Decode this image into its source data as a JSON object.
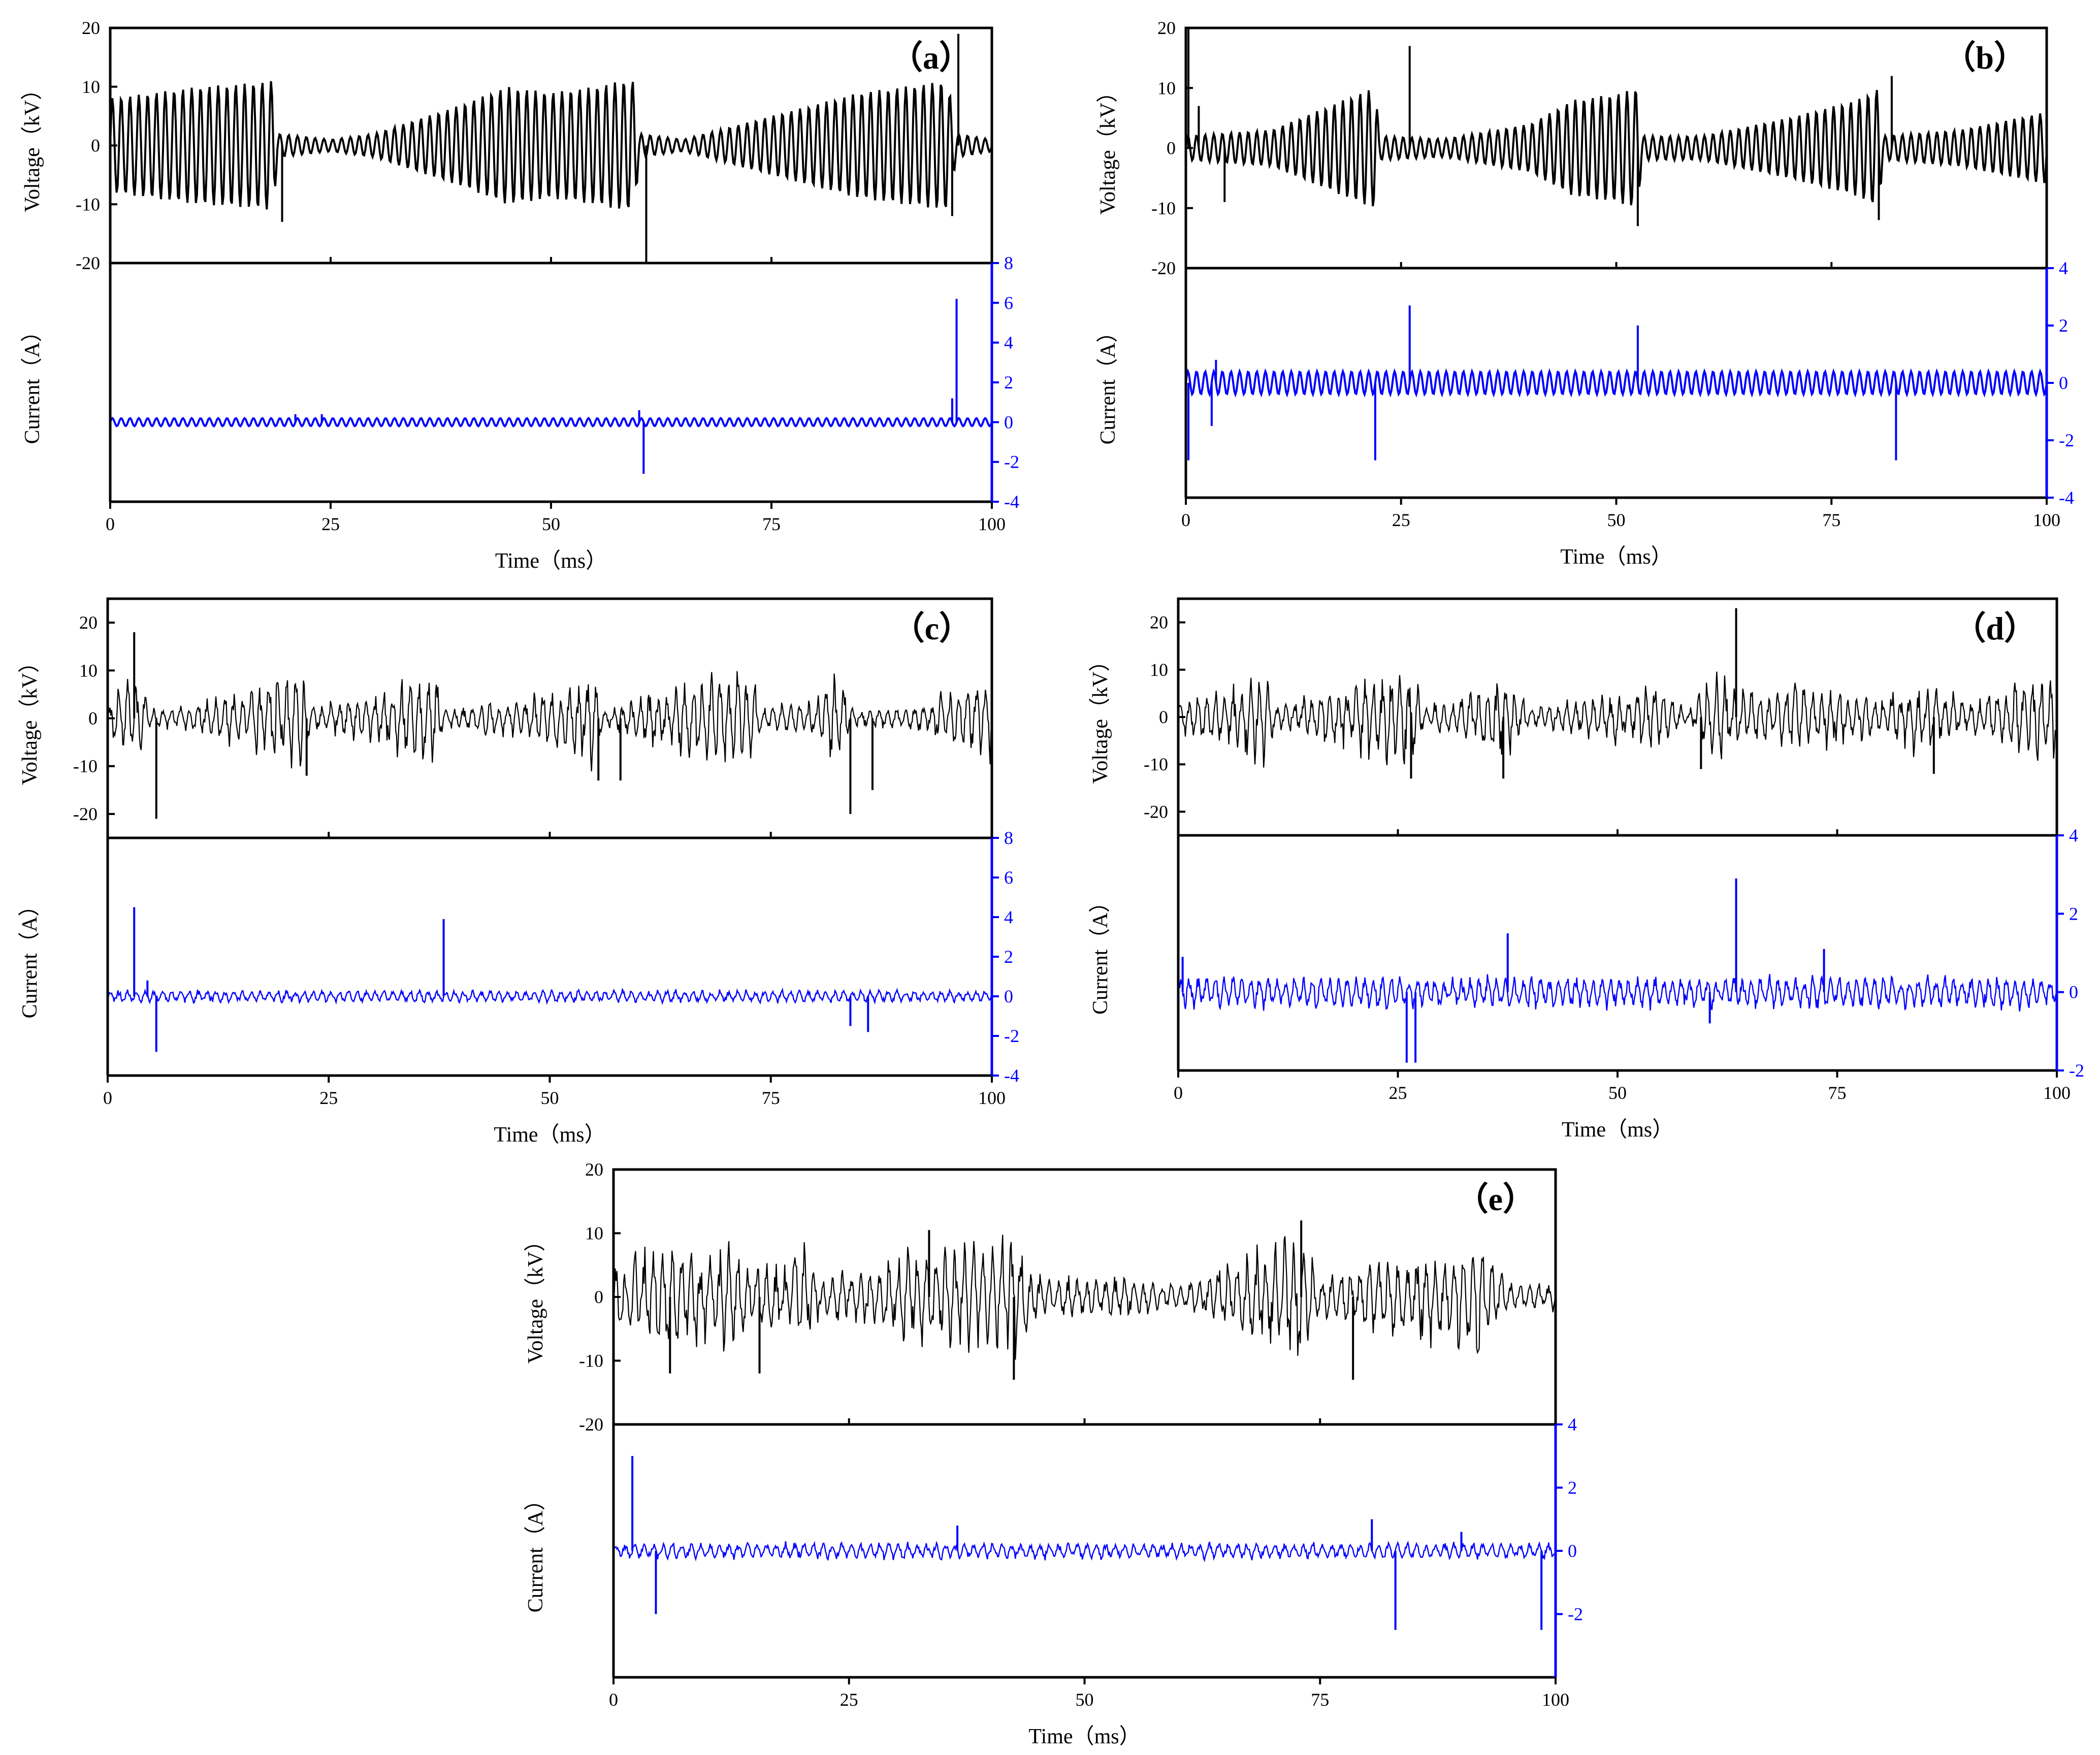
{
  "chart_data": [
    {
      "panel": "（a）",
      "type": "line",
      "xlabel": "Time（ms）",
      "x_ticks": [
        0,
        25,
        50,
        75,
        100
      ],
      "xlim": [
        0,
        100
      ],
      "voltage": {
        "ylabel": "Voltage（kV）",
        "ylim": [
          -20,
          20
        ],
        "yticks": [
          -20,
          -10,
          0,
          10,
          20
        ],
        "color": "#000000",
        "envelope": [
          [
            0,
            8
          ],
          [
            5,
            9
          ],
          [
            10,
            10
          ],
          [
            15,
            10.5
          ],
          [
            18.5,
            11
          ],
          [
            19,
            2
          ],
          [
            25,
            1
          ],
          [
            30,
            2
          ],
          [
            40,
            7
          ],
          [
            45,
            10
          ],
          [
            50,
            9
          ],
          [
            55,
            10
          ],
          [
            58,
            11
          ],
          [
            59.5,
            11
          ],
          [
            60,
            2
          ],
          [
            65,
            1
          ],
          [
            75,
            5
          ],
          [
            85,
            9
          ],
          [
            90,
            10
          ],
          [
            95,
            11
          ],
          [
            96,
            2
          ],
          [
            100,
            1
          ]
        ],
        "spikes": [
          [
            60.8,
            -20
          ],
          [
            96.2,
            19
          ],
          [
            19.5,
            -13
          ],
          [
            95.5,
            -12
          ]
        ]
      },
      "current": {
        "ylabel": "Current（A）",
        "ylim": [
          -4,
          8
        ],
        "yticks": [
          -4,
          -2,
          0,
          2,
          4,
          6,
          8
        ],
        "color": "#0000ff",
        "envelope": [
          [
            0,
            0.2
          ],
          [
            100,
            0.2
          ]
        ],
        "spikes": [
          [
            96,
            6.2
          ],
          [
            95.5,
            1.2
          ],
          [
            60.5,
            -2.6
          ],
          [
            60,
            0.6
          ],
          [
            21,
            0.4
          ],
          [
            24,
            0.4
          ]
        ]
      }
    },
    {
      "panel": "（b）",
      "type": "line",
      "xlabel": "Time（ms）",
      "x_ticks": [
        0,
        25,
        50,
        75,
        100
      ],
      "xlim": [
        0,
        100
      ],
      "voltage": {
        "ylabel": "Voltage（kV）",
        "ylim": [
          -20,
          20
        ],
        "yticks": [
          -20,
          -10,
          0,
          10,
          20
        ],
        "color": "#000000",
        "envelope": [
          [
            0,
            2
          ],
          [
            10,
            3
          ],
          [
            15,
            6
          ],
          [
            20,
            9
          ],
          [
            22,
            10
          ],
          [
            22.5,
            2
          ],
          [
            30,
            1.5
          ],
          [
            40,
            4
          ],
          [
            45,
            8
          ],
          [
            50,
            9
          ],
          [
            52.5,
            10
          ],
          [
            53,
            2
          ],
          [
            60,
            2
          ],
          [
            70,
            5
          ],
          [
            78,
            8
          ],
          [
            80.5,
            10
          ],
          [
            81,
            2
          ],
          [
            90,
            3
          ],
          [
            100,
            6
          ]
        ],
        "spikes": [
          [
            0.3,
            20
          ],
          [
            26,
            17
          ],
          [
            1.5,
            7
          ],
          [
            4.5,
            -9
          ],
          [
            82,
            12
          ],
          [
            52.5,
            -13
          ],
          [
            80.5,
            -12
          ]
        ]
      },
      "current": {
        "ylabel": "Current（A）",
        "ylim": [
          -4,
          4
        ],
        "yticks": [
          -4,
          -2,
          0,
          2,
          4
        ],
        "color": "#0000ff",
        "envelope": [
          [
            0,
            0.4
          ],
          [
            100,
            0.4
          ]
        ],
        "spikes": [
          [
            0.3,
            -2.7
          ],
          [
            3,
            -1.5
          ],
          [
            22,
            -2.7
          ],
          [
            26,
            2.7
          ],
          [
            52.5,
            2
          ],
          [
            82.5,
            -2.7
          ],
          [
            3.5,
            0.8
          ]
        ]
      }
    },
    {
      "panel": "（c）",
      "type": "line",
      "xlabel": "Time（ms）",
      "x_ticks": [
        0,
        25,
        50,
        75,
        100
      ],
      "xlim": [
        0,
        100
      ],
      "voltage": {
        "ylabel": "Voltage（kV）",
        "ylim": [
          -25,
          25
        ],
        "yticks": [
          -20,
          -10,
          0,
          10,
          20
        ],
        "color": "#000000",
        "envelope": [
          [
            0,
            4
          ],
          [
            3,
            9
          ],
          [
            5,
            2
          ],
          [
            10,
            3
          ],
          [
            20,
            10
          ],
          [
            22,
            10
          ],
          [
            23,
            2
          ],
          [
            35,
            8
          ],
          [
            37,
            10
          ],
          [
            38,
            2
          ],
          [
            50,
            5
          ],
          [
            55,
            10
          ],
          [
            56,
            2
          ],
          [
            65,
            8
          ],
          [
            73,
            11
          ],
          [
            74,
            2
          ],
          [
            80,
            4
          ],
          [
            83,
            10
          ],
          [
            84,
            2
          ],
          [
            90,
            2
          ],
          [
            100,
            9
          ]
        ],
        "spikes": [
          [
            3,
            18
          ],
          [
            5.5,
            -21
          ],
          [
            84,
            -20
          ],
          [
            86.5,
            -15
          ],
          [
            55.5,
            -13
          ],
          [
            58,
            -13
          ],
          [
            22.5,
            -12
          ]
        ]
      },
      "current": {
        "ylabel": "Current（A）",
        "ylim": [
          -4,
          8
        ],
        "yticks": [
          -4,
          -2,
          0,
          2,
          4,
          6,
          8
        ],
        "color": "#0000ff",
        "envelope": [
          [
            0,
            0.3
          ],
          [
            100,
            0.3
          ]
        ],
        "spikes": [
          [
            3,
            4.5
          ],
          [
            5.5,
            -2.8
          ],
          [
            38,
            3.9
          ],
          [
            84,
            -1.5
          ],
          [
            86,
            -1.8
          ],
          [
            4.5,
            0.8
          ]
        ]
      }
    },
    {
      "panel": "（d）",
      "type": "line",
      "xlabel": "Time（ms）",
      "x_ticks": [
        0,
        25,
        50,
        75,
        100
      ],
      "xlim": [
        0,
        100
      ],
      "voltage": {
        "ylabel": "Voltage（kV）",
        "ylim": [
          -25,
          25
        ],
        "yticks": [
          -20,
          -10,
          0,
          10,
          20
        ],
        "color": "#000000",
        "envelope": [
          [
            0,
            3
          ],
          [
            5,
            6
          ],
          [
            10,
            10
          ],
          [
            11,
            2
          ],
          [
            20,
            7
          ],
          [
            25,
            10
          ],
          [
            27,
            9
          ],
          [
            28,
            2
          ],
          [
            35,
            7
          ],
          [
            38,
            8
          ],
          [
            40,
            2
          ],
          [
            50,
            5
          ],
          [
            55,
            6
          ],
          [
            58,
            1
          ],
          [
            60,
            8
          ],
          [
            62,
            9
          ],
          [
            65,
            5
          ],
          [
            70,
            7
          ],
          [
            75,
            6
          ],
          [
            80,
            4
          ],
          [
            85,
            8
          ],
          [
            90,
            3
          ],
          [
            95,
            7
          ],
          [
            100,
            10
          ]
        ],
        "spikes": [
          [
            63.5,
            23
          ],
          [
            26.5,
            -13
          ],
          [
            37,
            -13
          ],
          [
            59.5,
            -11
          ],
          [
            86,
            -12
          ]
        ]
      },
      "current": {
        "ylabel": "Current（A）",
        "ylim": [
          -2,
          4
        ],
        "yticks": [
          -2,
          0,
          2,
          4
        ],
        "color": "#0000ff",
        "envelope": [
          [
            0,
            0.4
          ],
          [
            100,
            0.4
          ]
        ],
        "spikes": [
          [
            26,
            -1.8
          ],
          [
            27,
            -1.8
          ],
          [
            37.5,
            1.5
          ],
          [
            63.5,
            2.9
          ],
          [
            0.5,
            0.9
          ],
          [
            60.5,
            -0.8
          ],
          [
            73.5,
            1.1
          ]
        ]
      }
    },
    {
      "panel": "（e）",
      "type": "line",
      "xlabel": "Time（ms）",
      "x_ticks": [
        0,
        25,
        50,
        75,
        100
      ],
      "xlim": [
        0,
        100
      ],
      "voltage": {
        "ylabel": "Voltage（kV）",
        "ylim": [
          -20,
          20
        ],
        "yticks": [
          -20,
          -10,
          0,
          10,
          20
        ],
        "color": "#000000",
        "envelope": [
          [
            0,
            6
          ],
          [
            5,
            8
          ],
          [
            10,
            7
          ],
          [
            12,
            9
          ],
          [
            15,
            5
          ],
          [
            20,
            8
          ],
          [
            22,
            3
          ],
          [
            28,
            5
          ],
          [
            32,
            7
          ],
          [
            36,
            8
          ],
          [
            40,
            9
          ],
          [
            43,
            9
          ],
          [
            45,
            3
          ],
          [
            55,
            3
          ],
          [
            60,
            2
          ],
          [
            65,
            5
          ],
          [
            70,
            8
          ],
          [
            73,
            10
          ],
          [
            75,
            3
          ],
          [
            82,
            6
          ],
          [
            88,
            7
          ],
          [
            92,
            9
          ],
          [
            95,
            2
          ],
          [
            100,
            2
          ]
        ],
        "spikes": [
          [
            73,
            12
          ],
          [
            33.5,
            10.5
          ],
          [
            42.5,
            -13
          ],
          [
            78.5,
            -13
          ],
          [
            15.5,
            -12
          ],
          [
            6,
            -12
          ]
        ]
      },
      "current": {
        "ylabel": "Current（A）",
        "ylim": [
          -4,
          4
        ],
        "yticks": [
          -2,
          0,
          2,
          4
        ],
        "color": "#0000ff",
        "envelope": [
          [
            0,
            0.25
          ],
          [
            100,
            0.25
          ]
        ],
        "spikes": [
          [
            2,
            3
          ],
          [
            4.5,
            -2
          ],
          [
            83,
            -2.5
          ],
          [
            98.5,
            -2.5
          ],
          [
            80.5,
            1
          ],
          [
            36.5,
            0.8
          ],
          [
            90,
            0.6
          ]
        ]
      }
    }
  ]
}
